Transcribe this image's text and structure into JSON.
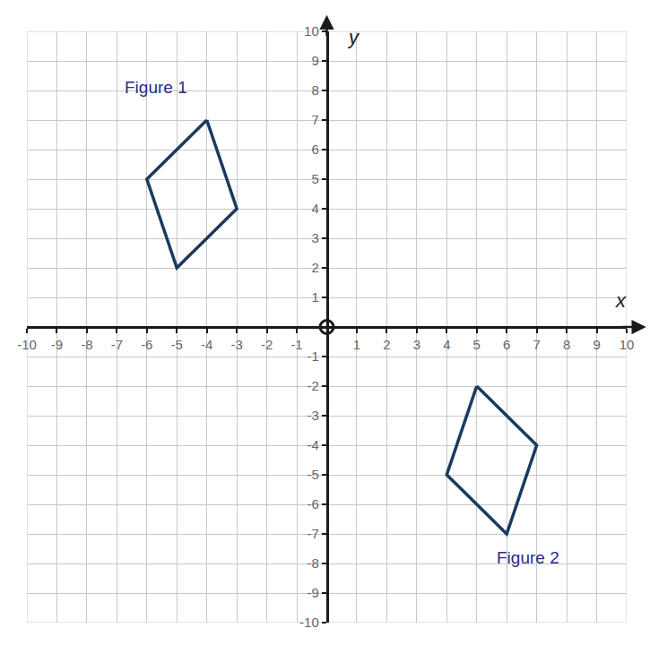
{
  "chart_data": {
    "type": "scatter",
    "xlabel": "x",
    "ylabel": "y",
    "xlim": [
      -10,
      10
    ],
    "ylim": [
      -10,
      10
    ],
    "xticks": [
      -10,
      -9,
      -8,
      -7,
      -6,
      -5,
      -4,
      -3,
      -2,
      -1,
      1,
      2,
      3,
      4,
      5,
      6,
      7,
      8,
      9,
      10
    ],
    "yticks": [
      -10,
      -9,
      -8,
      -7,
      -6,
      -5,
      -4,
      -3,
      -2,
      -1,
      1,
      2,
      3,
      4,
      5,
      6,
      7,
      8,
      9,
      10
    ],
    "grid": true,
    "series": [
      {
        "name": "Figure 1",
        "color": "#1b3a5c",
        "x": [
          -4,
          -3,
          -5,
          -6
        ],
        "y": [
          7,
          4,
          2,
          5
        ],
        "label_at": [
          -5.7,
          8.1
        ]
      },
      {
        "name": "Figure 2",
        "color": "#1b3a5c",
        "x": [
          5,
          7,
          6,
          4
        ],
        "y": [
          -2,
          -4,
          -7,
          -5
        ],
        "label_at": [
          6.7,
          -7.8
        ]
      }
    ]
  }
}
